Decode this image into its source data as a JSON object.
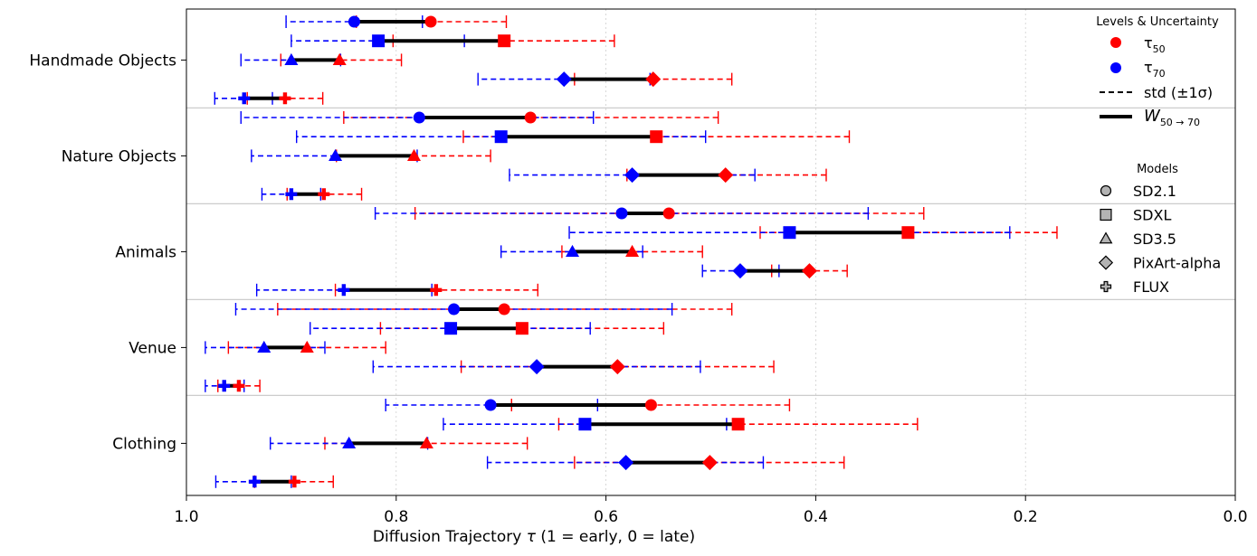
{
  "chart_data": {
    "type": "interval-dumbbell",
    "xlabel_main": "Diffusion Trajectory ",
    "xlabel_tau": "τ",
    "xlabel_tail": " (1 = early, 0 = late)",
    "xlim": [
      1.0,
      0.0
    ],
    "xticks": [
      "1.0",
      "0.8",
      "0.6",
      "0.4",
      "0.2",
      "0.0"
    ],
    "xtick_values": [
      1.0,
      0.8,
      0.6,
      0.4,
      0.2,
      0.0
    ],
    "grid": "x dotted",
    "colors": {
      "t50": "#ff0000",
      "t70": "#0000ff",
      "w": "#000000",
      "sep": "#cccccc"
    },
    "models": [
      "SD2.1",
      "SDXL",
      "SD3.5",
      "PixArt-alpha",
      "FLUX"
    ],
    "model_markers": [
      "circle",
      "square",
      "triangle",
      "diamond",
      "plus"
    ],
    "categories": [
      {
        "name": "Handmade Objects",
        "rows": [
          {
            "model": "SD2.1",
            "t50": 0.767,
            "t50_lo": 0.695,
            "t50_hi": 0.838,
            "t70": 0.84,
            "t70_lo": 0.775,
            "t70_hi": 0.905
          },
          {
            "model": "SDXL",
            "t50": 0.697,
            "t50_lo": 0.592,
            "t50_hi": 0.803,
            "t70": 0.817,
            "t70_lo": 0.735,
            "t70_hi": 0.9
          },
          {
            "model": "SD3.5",
            "t50": 0.854,
            "t50_lo": 0.795,
            "t50_hi": 0.91,
            "t70": 0.9,
            "t70_lo": 0.853,
            "t70_hi": 0.948
          },
          {
            "model": "PixArt-alpha",
            "t50": 0.555,
            "t50_lo": 0.48,
            "t50_hi": 0.63,
            "t70": 0.64,
            "t70_lo": 0.558,
            "t70_hi": 0.722
          },
          {
            "model": "FLUX",
            "t50": 0.906,
            "t50_lo": 0.87,
            "t50_hi": 0.942,
            "t70": 0.945,
            "t70_lo": 0.918,
            "t70_hi": 0.973
          }
        ]
      },
      {
        "name": "Nature Objects",
        "rows": [
          {
            "model": "SD2.1",
            "t50": 0.672,
            "t50_lo": 0.493,
            "t50_hi": 0.85,
            "t70": 0.778,
            "t70_lo": 0.612,
            "t70_hi": 0.948
          },
          {
            "model": "SDXL",
            "t50": 0.552,
            "t50_lo": 0.368,
            "t50_hi": 0.736,
            "t70": 0.7,
            "t70_lo": 0.505,
            "t70_hi": 0.895
          },
          {
            "model": "SD3.5",
            "t50": 0.783,
            "t50_lo": 0.71,
            "t50_hi": 0.857,
            "t70": 0.858,
            "t70_lo": 0.78,
            "t70_hi": 0.938
          },
          {
            "model": "PixArt-alpha",
            "t50": 0.486,
            "t50_lo": 0.39,
            "t50_hi": 0.58,
            "t70": 0.575,
            "t70_lo": 0.458,
            "t70_hi": 0.692
          },
          {
            "model": "FLUX",
            "t50": 0.869,
            "t50_lo": 0.833,
            "t50_hi": 0.904,
            "t70": 0.9,
            "t70_lo": 0.872,
            "t70_hi": 0.928
          }
        ]
      },
      {
        "name": "Animals",
        "rows": [
          {
            "model": "SD2.1",
            "t50": 0.54,
            "t50_lo": 0.297,
            "t50_hi": 0.782,
            "t70": 0.585,
            "t70_lo": 0.35,
            "t70_hi": 0.82
          },
          {
            "model": "SDXL",
            "t50": 0.312,
            "t50_lo": 0.17,
            "t50_hi": 0.453,
            "t70": 0.425,
            "t70_lo": 0.215,
            "t70_hi": 0.635
          },
          {
            "model": "SD3.5",
            "t50": 0.575,
            "t50_lo": 0.508,
            "t50_hi": 0.642,
            "t70": 0.632,
            "t70_lo": 0.565,
            "t70_hi": 0.7
          },
          {
            "model": "PixArt-alpha",
            "t50": 0.406,
            "t50_lo": 0.37,
            "t50_hi": 0.442,
            "t70": 0.472,
            "t70_lo": 0.435,
            "t70_hi": 0.508
          },
          {
            "model": "FLUX",
            "t50": 0.762,
            "t50_lo": 0.665,
            "t50_hi": 0.858,
            "t70": 0.85,
            "t70_lo": 0.766,
            "t70_hi": 0.933
          }
        ]
      },
      {
        "name": "Venue",
        "rows": [
          {
            "model": "SD2.1",
            "t50": 0.697,
            "t50_lo": 0.48,
            "t50_hi": 0.913,
            "t70": 0.745,
            "t70_lo": 0.537,
            "t70_hi": 0.953
          },
          {
            "model": "SDXL",
            "t50": 0.68,
            "t50_lo": 0.545,
            "t50_hi": 0.815,
            "t70": 0.748,
            "t70_lo": 0.615,
            "t70_hi": 0.882
          },
          {
            "model": "SD3.5",
            "t50": 0.885,
            "t50_lo": 0.81,
            "t50_hi": 0.96,
            "t70": 0.926,
            "t70_lo": 0.868,
            "t70_hi": 0.982
          },
          {
            "model": "PixArt-alpha",
            "t50": 0.589,
            "t50_lo": 0.44,
            "t50_hi": 0.738,
            "t70": 0.666,
            "t70_lo": 0.51,
            "t70_hi": 0.822
          },
          {
            "model": "FLUX",
            "t50": 0.95,
            "t50_lo": 0.93,
            "t50_hi": 0.97,
            "t70": 0.964,
            "t70_lo": 0.945,
            "t70_hi": 0.982
          }
        ]
      },
      {
        "name": "Clothing",
        "rows": [
          {
            "model": "SD2.1",
            "t50": 0.557,
            "t50_lo": 0.425,
            "t50_hi": 0.69,
            "t70": 0.71,
            "t70_lo": 0.608,
            "t70_hi": 0.81
          },
          {
            "model": "SDXL",
            "t50": 0.474,
            "t50_lo": 0.303,
            "t50_hi": 0.645,
            "t70": 0.62,
            "t70_lo": 0.485,
            "t70_hi": 0.755
          },
          {
            "model": "SD3.5",
            "t50": 0.771,
            "t50_lo": 0.675,
            "t50_hi": 0.868,
            "t70": 0.845,
            "t70_lo": 0.77,
            "t70_hi": 0.92
          },
          {
            "model": "PixArt-alpha",
            "t50": 0.501,
            "t50_lo": 0.373,
            "t50_hi": 0.63,
            "t70": 0.581,
            "t70_lo": 0.45,
            "t70_hi": 0.713
          },
          {
            "model": "FLUX",
            "t50": 0.897,
            "t50_lo": 0.86,
            "t50_hi": 0.935,
            "t70": 0.935,
            "t70_lo": 0.9,
            "t70_hi": 0.972
          }
        ]
      }
    ]
  },
  "legend": {
    "levels_title": "Levels & Uncertainty",
    "t50_symbol": "τ",
    "t50_sub": "50",
    "t70_symbol": "τ",
    "t70_sub": "70",
    "std_label": "std (±1σ)",
    "w_symbol": "W",
    "w_sub": "50 → 70",
    "models_title": "Models"
  }
}
